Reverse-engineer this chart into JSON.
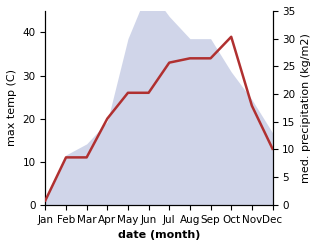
{
  "months": [
    "Jan",
    "Feb",
    "Mar",
    "Apr",
    "May",
    "Jun",
    "Jul",
    "Aug",
    "Sep",
    "Oct",
    "Nov",
    "Dec"
  ],
  "temperature": [
    1,
    11,
    11,
    20,
    26,
    26,
    33,
    34,
    34,
    39,
    23,
    13
  ],
  "precipitation": [
    1,
    9,
    11,
    15,
    30,
    39,
    34,
    30,
    30,
    24,
    19,
    13
  ],
  "temp_ylim": [
    0,
    45
  ],
  "precip_ylim": [
    0,
    35
  ],
  "temp_yticks": [
    0,
    10,
    20,
    30,
    40
  ],
  "precip_yticks": [
    0,
    5,
    10,
    15,
    20,
    25,
    30,
    35
  ],
  "temp_color": "#b03030",
  "fill_color": "#aab4d8",
  "fill_alpha": 0.55,
  "ylabel_left": "max temp (C)",
  "ylabel_right": "med. precipitation (kg/m2)",
  "xlabel": "date (month)",
  "label_fontsize": 8,
  "tick_fontsize": 7.5
}
